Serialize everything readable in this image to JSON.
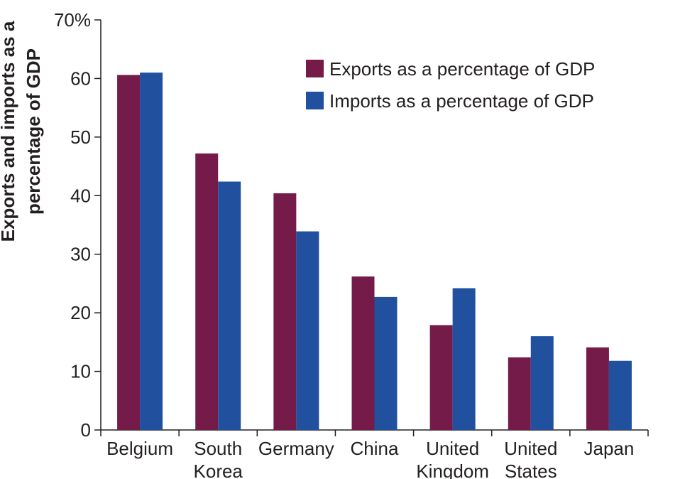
{
  "chart_data": {
    "type": "bar",
    "title": "",
    "xlabel": "",
    "ylabel": [
      "Exports and imports as a",
      "percentage of GDP"
    ],
    "ylim": [
      0,
      70
    ],
    "yticks": [
      0,
      10,
      20,
      30,
      40,
      50,
      60,
      70
    ],
    "ytick_labels": [
      "0",
      "10",
      "20",
      "30",
      "40",
      "50",
      "60",
      "70%"
    ],
    "categories": [
      [
        "Belgium"
      ],
      [
        "South",
        "Korea"
      ],
      [
        "Germany"
      ],
      [
        "China"
      ],
      [
        "United",
        "Kingdom"
      ],
      [
        "United",
        "States"
      ],
      [
        "Japan"
      ]
    ],
    "series": [
      {
        "name": "Exports as a percentage of GDP",
        "color": "#751b49",
        "values": [
          60.6,
          47.2,
          40.4,
          26.2,
          17.9,
          12.4,
          14.1
        ]
      },
      {
        "name": "Imports as a percentage of GDP",
        "color": "#21509f",
        "values": [
          61.0,
          42.4,
          33.9,
          22.7,
          24.2,
          16.0,
          11.8
        ]
      }
    ],
    "grid": false,
    "legend_position": "top-right"
  }
}
